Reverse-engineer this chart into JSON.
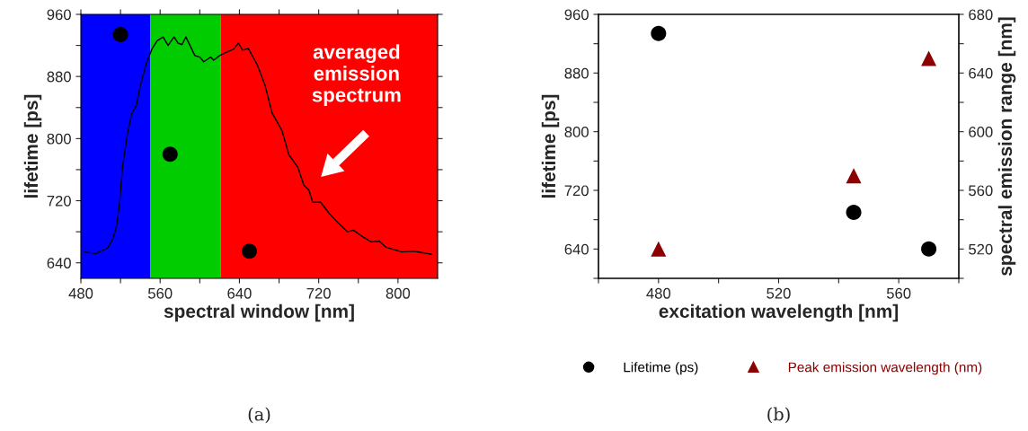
{
  "chart_data": [
    {
      "type": "scatter",
      "xlabel": "spectral window [nm]",
      "ylabel": "lifetime [ps]",
      "xlim": [
        480,
        840
      ],
      "xticks": [
        480,
        {
          "value": 520,
          "label": null
        },
        560,
        {
          "value": 600,
          "label": null
        },
        640,
        {
          "value": 680,
          "label": null
        },
        720,
        {
          "value": 760,
          "label": null
        },
        800
      ],
      "ylim": [
        620,
        960
      ],
      "yticks": [
        640,
        {
          "value": 680,
          "label": null
        },
        720,
        {
          "value": 760,
          "label": null
        },
        800,
        {
          "value": 840,
          "label": null
        },
        880,
        {
          "value": 920,
          "label": null
        },
        960
      ],
      "bands": [
        {
          "axis": "x",
          "from": 480,
          "to": 550,
          "color": "#0000ff"
        },
        {
          "axis": "x",
          "from": 550,
          "to": 621,
          "color": "#00cc00"
        },
        {
          "axis": "x",
          "from": 621,
          "to": 840,
          "color": "#ff0000"
        }
      ],
      "series": [
        {
          "type": "line",
          "color": "#000000",
          "line_style": "solid",
          "marker": "none",
          "x": [
            484,
            495,
            507,
            512,
            516,
            519,
            522,
            527,
            531,
            536,
            540,
            546,
            552,
            557,
            563,
            568,
            574,
            578,
            582,
            586,
            595,
            600,
            604,
            611,
            614,
            620,
            628,
            634,
            639,
            643,
            649,
            658,
            666,
            673,
            683,
            690,
            699,
            705,
            710,
            714,
            722,
            731,
            740,
            749,
            755,
            764,
            773,
            781,
            788,
            804,
            816,
            834
          ],
          "values": [
            654,
            652,
            659,
            670,
            687,
            716,
            763,
            806,
            831,
            843,
            868,
            897,
            916,
            926,
            931,
            920,
            931,
            923,
            921,
            931,
            907,
            905,
            899,
            905,
            901,
            907,
            912,
            915,
            923,
            914,
            916,
            895,
            868,
            833,
            810,
            779,
            763,
            740,
            734,
            718,
            718,
            703,
            691,
            680,
            682,
            674,
            667,
            668,
            660,
            654,
            655,
            651
          ]
        },
        {
          "type": "scatter",
          "color": "#000000",
          "marker": "circle",
          "x": [
            520,
            570,
            650
          ],
          "values": [
            934,
            780,
            655
          ]
        }
      ],
      "annotations": [
        "averaged\nemission\nspectrum",
        "(a)"
      ]
    },
    {
      "type": "scatter",
      "xlabel": "excitation wavelength [nm]",
      "ylabel": "lifetime [ps]",
      "y2label": "spectral emission range [nm]",
      "xlim": [
        460,
        580
      ],
      "xticks": [
        {
          "value": 460,
          "label": null
        },
        480,
        {
          "value": 500,
          "label": null
        },
        520,
        {
          "value": 540,
          "label": null
        },
        560,
        {
          "value": 580,
          "label": null
        }
      ],
      "ylim": [
        600,
        960
      ],
      "yticks": [
        {
          "value": 600,
          "label": null
        },
        640,
        {
          "value": 680,
          "label": null
        },
        720,
        {
          "value": 760,
          "label": null
        },
        800,
        {
          "value": 840,
          "label": null
        },
        880,
        {
          "value": 920,
          "label": null
        },
        960
      ],
      "y2lim": [
        500,
        680
      ],
      "y2ticks": [
        {
          "value": 500,
          "label": null
        },
        520,
        {
          "value": 540,
          "label": null
        },
        560,
        {
          "value": 580,
          "label": null
        },
        600,
        {
          "value": 620,
          "label": null
        },
        640,
        {
          "value": 660,
          "label": null
        },
        680
      ],
      "legend": "bottom",
      "series": [
        {
          "name": "Lifetime (ps)",
          "color": "#000000",
          "marker": "circle",
          "x": [
            480,
            545,
            570
          ],
          "values": [
            934,
            690,
            640
          ]
        },
        {
          "name": "Peak emission wavelength (nm)",
          "color": "#8b0000",
          "marker": "triangle",
          "axis": "y2",
          "x": [
            480,
            545,
            570
          ],
          "values": [
            520,
            570,
            650
          ]
        }
      ],
      "annotations": [
        "(b)"
      ]
    }
  ]
}
